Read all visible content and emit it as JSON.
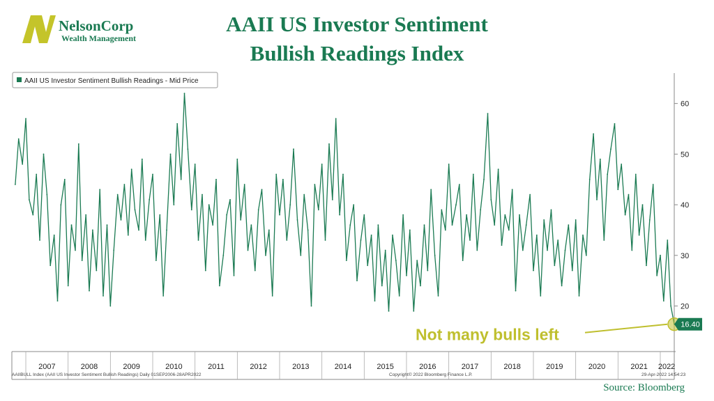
{
  "logo": {
    "name": "NelsonCorp",
    "sub": "Wealth Management",
    "accent": "#c4c42a",
    "brand": "#1a7a52"
  },
  "title_line1": "AAII US Investor Sentiment",
  "title_line2": "Bullish Readings Index",
  "source": "Source: Bloomberg",
  "footer": {
    "left": "AAIIBULL Index (AAII US Investor Sentiment Bullish Readings)  Daily 01SEP2006-28APR2022",
    "center": "Copyright© 2022 Bloomberg Finance L.P.",
    "right": "29-Apr-2022 14:54:23"
  },
  "colors": {
    "line": "#1a7a52",
    "annotation": "#bfbf2e",
    "axis": "#888888"
  },
  "chart_data": {
    "type": "line",
    "series": [
      {
        "name": "AAII US Investor Sentiment Bullish Readings - Mid Price",
        "x": [
          2006.75,
          2006.83,
          2006.92,
          2007.0,
          2007.08,
          2007.17,
          2007.25,
          2007.33,
          2007.42,
          2007.5,
          2007.58,
          2007.67,
          2007.75,
          2007.83,
          2007.92,
          2008.0,
          2008.08,
          2008.17,
          2008.25,
          2008.33,
          2008.42,
          2008.5,
          2008.58,
          2008.67,
          2008.75,
          2008.83,
          2008.92,
          2009.0,
          2009.08,
          2009.17,
          2009.25,
          2009.33,
          2009.42,
          2009.5,
          2009.58,
          2009.67,
          2009.75,
          2009.83,
          2009.92,
          2010.0,
          2010.08,
          2010.17,
          2010.25,
          2010.33,
          2010.42,
          2010.5,
          2010.58,
          2010.67,
          2010.75,
          2010.83,
          2010.92,
          2011.0,
          2011.08,
          2011.17,
          2011.25,
          2011.33,
          2011.42,
          2011.5,
          2011.58,
          2011.67,
          2011.75,
          2011.83,
          2011.92,
          2012.0,
          2012.08,
          2012.17,
          2012.25,
          2012.33,
          2012.42,
          2012.5,
          2012.58,
          2012.67,
          2012.75,
          2012.83,
          2012.92,
          2013.0,
          2013.08,
          2013.17,
          2013.25,
          2013.33,
          2013.42,
          2013.5,
          2013.58,
          2013.67,
          2013.75,
          2013.83,
          2013.92,
          2014.0,
          2014.08,
          2014.17,
          2014.25,
          2014.33,
          2014.42,
          2014.5,
          2014.58,
          2014.67,
          2014.75,
          2014.83,
          2014.92,
          2015.0,
          2015.08,
          2015.17,
          2015.25,
          2015.33,
          2015.42,
          2015.5,
          2015.58,
          2015.67,
          2015.75,
          2015.83,
          2015.92,
          2016.0,
          2016.08,
          2016.17,
          2016.25,
          2016.33,
          2016.42,
          2016.5,
          2016.58,
          2016.67,
          2016.75,
          2016.83,
          2016.92,
          2017.0,
          2017.08,
          2017.17,
          2017.25,
          2017.33,
          2017.42,
          2017.5,
          2017.58,
          2017.67,
          2017.75,
          2017.83,
          2017.92,
          2018.0,
          2018.08,
          2018.17,
          2018.25,
          2018.33,
          2018.42,
          2018.5,
          2018.58,
          2018.67,
          2018.75,
          2018.83,
          2018.92,
          2019.0,
          2019.08,
          2019.17,
          2019.25,
          2019.33,
          2019.42,
          2019.5,
          2019.58,
          2019.67,
          2019.75,
          2019.83,
          2019.92,
          2020.0,
          2020.08,
          2020.17,
          2020.25,
          2020.33,
          2020.42,
          2020.5,
          2020.58,
          2020.67,
          2020.75,
          2020.83,
          2020.92,
          2021.0,
          2021.08,
          2021.17,
          2021.25,
          2021.33,
          2021.42,
          2021.5,
          2021.58,
          2021.67,
          2021.75,
          2021.83,
          2021.92,
          2022.0,
          2022.08,
          2022.17,
          2022.25,
          2022.33
        ],
        "values": [
          44,
          53,
          48,
          57,
          41,
          38,
          46,
          33,
          50,
          42,
          28,
          34,
          21,
          40,
          45,
          24,
          36,
          31,
          52,
          29,
          38,
          23,
          35,
          27,
          43,
          22,
          36,
          20,
          31,
          42,
          37,
          44,
          34,
          47,
          39,
          35,
          49,
          33,
          41,
          46,
          29,
          38,
          22,
          35,
          50,
          40,
          56,
          45,
          62,
          51,
          39,
          48,
          33,
          42,
          27,
          40,
          36,
          45,
          24,
          30,
          38,
          41,
          26,
          49,
          37,
          44,
          31,
          36,
          27,
          39,
          43,
          30,
          35,
          22,
          46,
          38,
          45,
          33,
          40,
          51,
          37,
          30,
          42,
          35,
          20,
          44,
          39,
          48,
          33,
          52,
          41,
          57,
          38,
          46,
          29,
          36,
          40,
          25,
          33,
          38,
          28,
          34,
          21,
          36,
          24,
          31,
          19,
          34,
          29,
          22,
          38,
          26,
          35,
          19,
          29,
          24,
          36,
          27,
          43,
          30,
          22,
          39,
          35,
          48,
          36,
          40,
          44,
          29,
          38,
          33,
          46,
          31,
          39,
          45,
          58,
          41,
          36,
          47,
          32,
          38,
          35,
          43,
          23,
          38,
          31,
          36,
          42,
          27,
          34,
          22,
          37,
          31,
          39,
          28,
          33,
          24,
          31,
          36,
          27,
          37,
          22,
          34,
          30,
          45,
          54,
          41,
          49,
          33,
          46,
          51,
          56,
          43,
          48,
          38,
          42,
          31,
          46,
          34,
          40,
          28,
          37,
          44,
          26,
          30,
          21,
          33,
          20,
          16.4
        ],
        "last_value": 16.4,
        "last_value_label": "16.40"
      }
    ],
    "xlim": [
      2006.67,
      2022.33
    ],
    "x_tick_labels": [
      "2007",
      "2008",
      "2009",
      "2010",
      "2011",
      "2012",
      "2013",
      "2014",
      "2015",
      "2016",
      "2017",
      "2018",
      "2019",
      "2020",
      "2021",
      "2022"
    ],
    "x_tick_values": [
      2007,
      2008,
      2009,
      2010,
      2011,
      2012,
      2013,
      2014,
      2015,
      2016,
      2017,
      2018,
      2019,
      2020,
      2021,
      2022
    ],
    "y_ticks": [
      20,
      30,
      40,
      50,
      60
    ],
    "ylim": [
      11,
      66
    ],
    "y_axis_side": "right",
    "legend_position": "top-left",
    "annotation": {
      "text": "Not many bulls left",
      "x": 2022.33,
      "y": 16.4
    },
    "grid": false
  }
}
